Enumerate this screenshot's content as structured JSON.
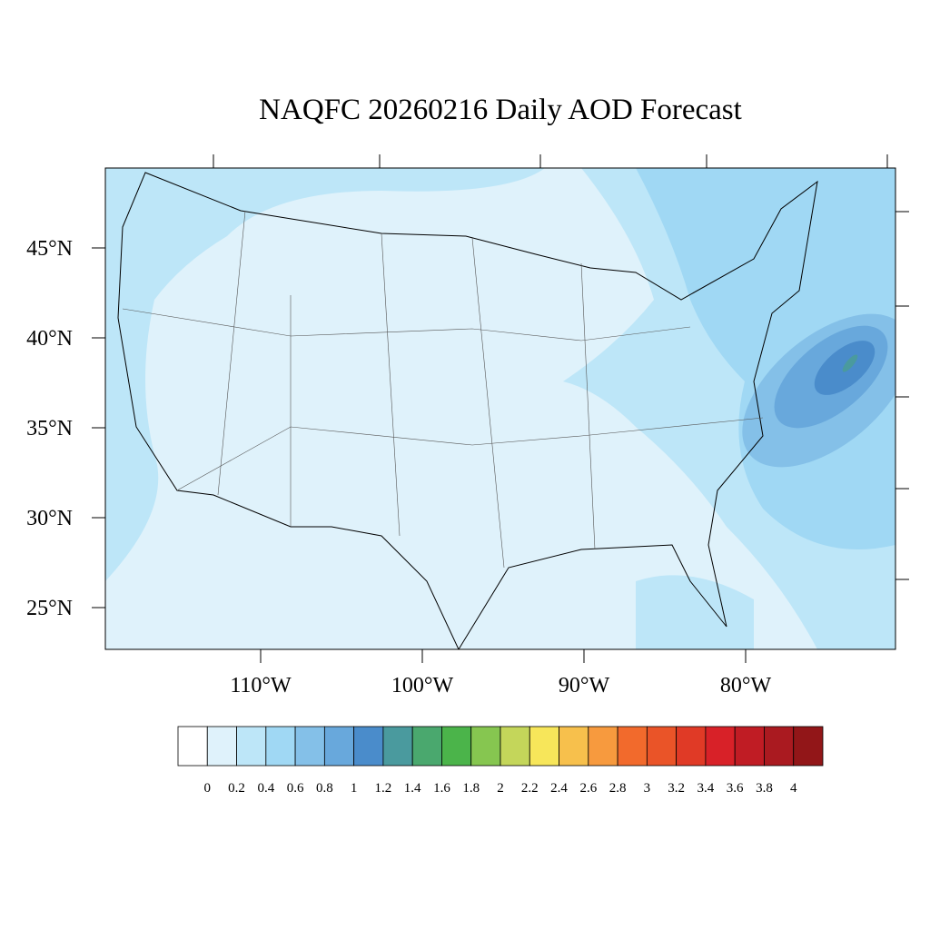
{
  "title": "NAQFC 20260216 Daily AOD Forecast",
  "map": {
    "lon_ticks": [
      {
        "value": -110,
        "label": "110°W"
      },
      {
        "value": -100,
        "label": "100°W"
      },
      {
        "value": -90,
        "label": "90°W"
      },
      {
        "value": -80,
        "label": "80°W"
      }
    ],
    "lat_ticks": [
      {
        "value": 45,
        "label": "45°N"
      },
      {
        "value": 40,
        "label": "40°N"
      },
      {
        "value": 35,
        "label": "35°N"
      },
      {
        "value": 30,
        "label": "30°N"
      },
      {
        "value": 25,
        "label": "25°N"
      }
    ]
  },
  "colorbar": {
    "levels": [
      0,
      0.2,
      0.4,
      0.6,
      0.8,
      1,
      1.2,
      1.4,
      1.6,
      1.8,
      2,
      2.2,
      2.4,
      2.6,
      2.8,
      3,
      3.2,
      3.4,
      3.6,
      3.8,
      4
    ],
    "colors": [
      "#ffffff",
      "#dff2fb",
      "#bde6f8",
      "#a0d8f4",
      "#84c0e8",
      "#68a8dc",
      "#4a8ccb",
      "#4a9a9e",
      "#4aa86e",
      "#4bb44a",
      "#86c650",
      "#c4d65a",
      "#f7e65a",
      "#f7c04c",
      "#f79a3e",
      "#f26a2c",
      "#ea5428",
      "#e03a26",
      "#d82128",
      "#c01c24",
      "#aa1a20",
      "#921618"
    ]
  }
}
